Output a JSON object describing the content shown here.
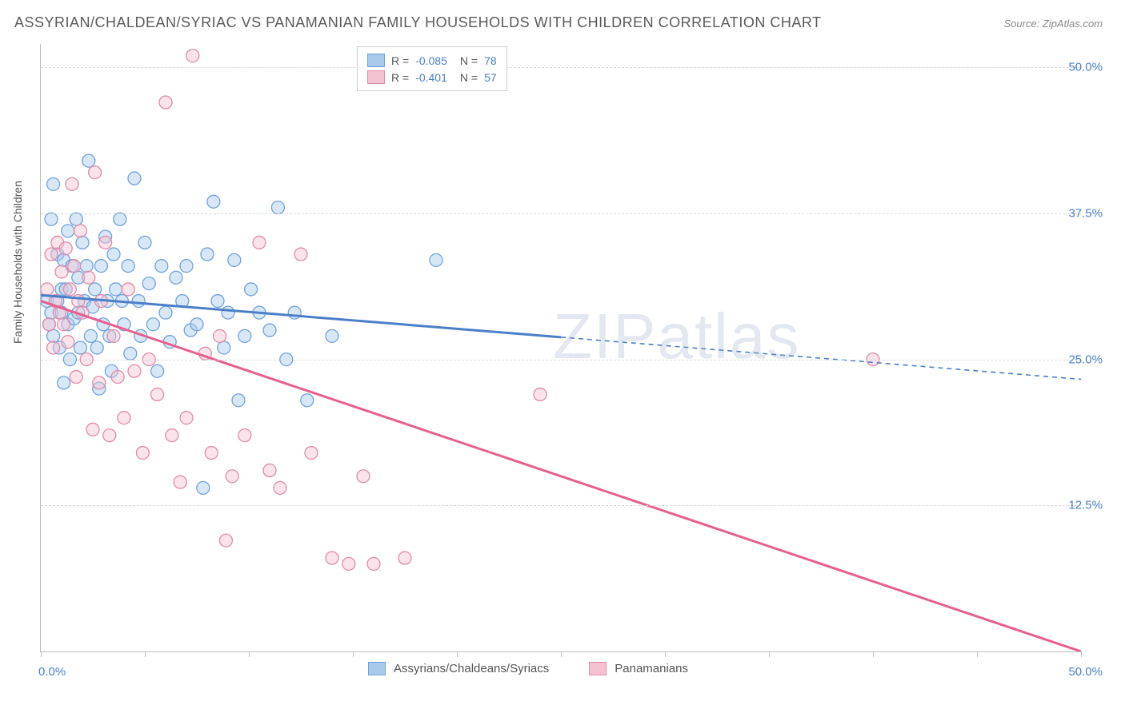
{
  "title": "ASSYRIAN/CHALDEAN/SYRIAC VS PANAMANIAN FAMILY HOUSEHOLDS WITH CHILDREN CORRELATION CHART",
  "source": "Source: ZipAtlas.com",
  "ylabel": "Family Households with Children",
  "watermark_a": "ZIP",
  "watermark_b": "atlas",
  "chart": {
    "type": "scatter-correlation",
    "background_color": "#ffffff",
    "grid_color": "#d8d8d8",
    "axis_color": "#bdbdbd",
    "xlim": [
      0,
      50
    ],
    "ylim": [
      0,
      52
    ],
    "x_ticks": [
      0,
      5,
      10,
      15,
      20,
      25,
      30,
      35,
      40,
      45,
      50
    ],
    "y_gridlines": [
      12.5,
      25.0,
      37.5,
      50.0
    ],
    "y_tick_labels": [
      "12.5%",
      "25.0%",
      "37.5%",
      "50.0%"
    ],
    "x_min_label": "0.0%",
    "x_max_label": "50.0%",
    "marker_radius": 8,
    "marker_opacity": 0.45,
    "line_width": 3,
    "series": [
      {
        "name": "Assyrians/Chaldeans/Syriacs",
        "color_fill": "#a9c9ec",
        "color_stroke": "#6fa2dd",
        "line_color": "#4a7fc8",
        "R": "-0.085",
        "N": "78",
        "trend": {
          "y_at_xmin": 30.5,
          "y_at_xmax": 23.3,
          "solid_until_x": 25
        },
        "points": [
          [
            0.3,
            30
          ],
          [
            0.4,
            28
          ],
          [
            0.5,
            37
          ],
          [
            0.5,
            29
          ],
          [
            0.6,
            40
          ],
          [
            0.6,
            27
          ],
          [
            0.8,
            34
          ],
          [
            0.8,
            30
          ],
          [
            0.9,
            26
          ],
          [
            1.0,
            31
          ],
          [
            1.0,
            29
          ],
          [
            1.1,
            33.5
          ],
          [
            1.1,
            23
          ],
          [
            1.2,
            31
          ],
          [
            1.3,
            36
          ],
          [
            1.3,
            28
          ],
          [
            1.4,
            25
          ],
          [
            1.5,
            33
          ],
          [
            1.6,
            28.5
          ],
          [
            1.7,
            37
          ],
          [
            1.8,
            32
          ],
          [
            1.8,
            29
          ],
          [
            1.9,
            26
          ],
          [
            2.0,
            35
          ],
          [
            2.1,
            30
          ],
          [
            2.2,
            33
          ],
          [
            2.3,
            42
          ],
          [
            2.4,
            27
          ],
          [
            2.5,
            29.5
          ],
          [
            2.6,
            31
          ],
          [
            2.7,
            26
          ],
          [
            2.8,
            22.5
          ],
          [
            2.9,
            33
          ],
          [
            3.0,
            28
          ],
          [
            3.1,
            35.5
          ],
          [
            3.2,
            30
          ],
          [
            3.3,
            27
          ],
          [
            3.4,
            24
          ],
          [
            3.5,
            34
          ],
          [
            3.6,
            31
          ],
          [
            3.8,
            37
          ],
          [
            3.9,
            30
          ],
          [
            4.0,
            28
          ],
          [
            4.2,
            33
          ],
          [
            4.3,
            25.5
          ],
          [
            4.5,
            40.5
          ],
          [
            4.7,
            30
          ],
          [
            4.8,
            27
          ],
          [
            5.0,
            35
          ],
          [
            5.2,
            31.5
          ],
          [
            5.4,
            28
          ],
          [
            5.6,
            24
          ],
          [
            5.8,
            33
          ],
          [
            6.0,
            29
          ],
          [
            6.2,
            26.5
          ],
          [
            6.5,
            32
          ],
          [
            6.8,
            30
          ],
          [
            7.0,
            33
          ],
          [
            7.2,
            27.5
          ],
          [
            7.5,
            28
          ],
          [
            7.8,
            14
          ],
          [
            8.0,
            34
          ],
          [
            8.3,
            38.5
          ],
          [
            8.5,
            30
          ],
          [
            8.8,
            26
          ],
          [
            9.0,
            29
          ],
          [
            9.3,
            33.5
          ],
          [
            9.5,
            21.5
          ],
          [
            9.8,
            27
          ],
          [
            10.1,
            31
          ],
          [
            10.5,
            29
          ],
          [
            11.0,
            27.5
          ],
          [
            11.4,
            38
          ],
          [
            11.8,
            25
          ],
          [
            12.2,
            29
          ],
          [
            12.8,
            21.5
          ],
          [
            14.0,
            27
          ],
          [
            19.0,
            33.5
          ]
        ]
      },
      {
        "name": "Panamanians",
        "color_fill": "#f4c1d1",
        "color_stroke": "#e18ba8",
        "line_color": "#e65f8e",
        "R": "-0.401",
        "N": "57",
        "trend": {
          "y_at_xmin": 30.0,
          "y_at_xmax": 0.0,
          "solid_until_x": 50
        },
        "points": [
          [
            0.3,
            31
          ],
          [
            0.4,
            28
          ],
          [
            0.5,
            34
          ],
          [
            0.6,
            26
          ],
          [
            0.7,
            30
          ],
          [
            0.8,
            35
          ],
          [
            0.9,
            29
          ],
          [
            1.0,
            32.5
          ],
          [
            1.1,
            28
          ],
          [
            1.2,
            34.5
          ],
          [
            1.3,
            26.5
          ],
          [
            1.4,
            31
          ],
          [
            1.5,
            40
          ],
          [
            1.6,
            33
          ],
          [
            1.7,
            23.5
          ],
          [
            1.8,
            30
          ],
          [
            1.9,
            36
          ],
          [
            2.0,
            29
          ],
          [
            2.2,
            25
          ],
          [
            2.3,
            32
          ],
          [
            2.5,
            19
          ],
          [
            2.6,
            41
          ],
          [
            2.8,
            23
          ],
          [
            2.9,
            30
          ],
          [
            3.1,
            35
          ],
          [
            3.3,
            18.5
          ],
          [
            3.5,
            27
          ],
          [
            3.7,
            23.5
          ],
          [
            4.0,
            20
          ],
          [
            4.2,
            31
          ],
          [
            4.5,
            24
          ],
          [
            4.9,
            17
          ],
          [
            5.2,
            25
          ],
          [
            5.6,
            22
          ],
          [
            6.0,
            47
          ],
          [
            6.3,
            18.5
          ],
          [
            6.7,
            14.5
          ],
          [
            7.0,
            20
          ],
          [
            7.3,
            51
          ],
          [
            7.9,
            25.5
          ],
          [
            8.2,
            17
          ],
          [
            8.6,
            27
          ],
          [
            8.9,
            9.5
          ],
          [
            9.2,
            15
          ],
          [
            9.8,
            18.5
          ],
          [
            10.5,
            35
          ],
          [
            11.0,
            15.5
          ],
          [
            11.5,
            14
          ],
          [
            12.5,
            34
          ],
          [
            13.0,
            17
          ],
          [
            14.0,
            8
          ],
          [
            14.8,
            7.5
          ],
          [
            15.5,
            15
          ],
          [
            16.0,
            7.5
          ],
          [
            17.5,
            8
          ],
          [
            24.0,
            22
          ],
          [
            40.0,
            25
          ]
        ]
      }
    ]
  },
  "legend_bottom": [
    {
      "label": "Assyrians/Chaldeans/Syriacs",
      "fill": "#a9c9ec",
      "stroke": "#6fa2dd"
    },
    {
      "label": "Panamanians",
      "fill": "#f4c1d1",
      "stroke": "#e18ba8"
    }
  ]
}
